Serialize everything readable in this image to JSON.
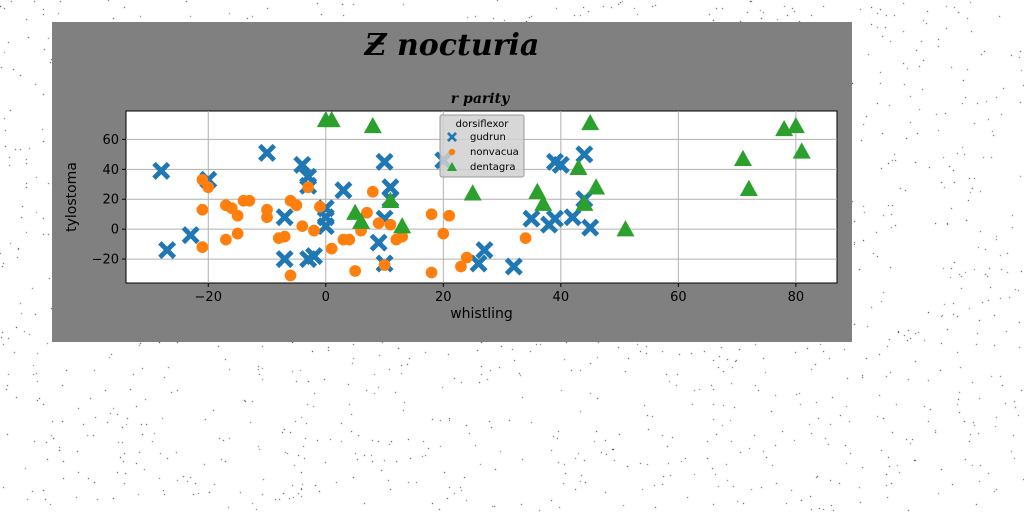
{
  "chart_data": {
    "type": "scatter",
    "title": "Ƶ nocturia",
    "subtitle": "r parity",
    "xlabel": "whistling",
    "ylabel": "tylostoma",
    "xlim": [
      -34,
      87
    ],
    "ylim": [
      -36,
      79
    ],
    "xticks": [
      -20,
      0,
      20,
      40,
      60,
      80
    ],
    "yticks": [
      -20,
      0,
      20,
      40,
      60
    ],
    "xtick_labels": [
      "−20",
      "0",
      "20",
      "40",
      "60",
      "80"
    ],
    "ytick_labels": [
      "−20",
      "0",
      "20",
      "40",
      "60"
    ],
    "grid": true,
    "legend": {
      "title": "dorsiflexor",
      "position": "top-center"
    },
    "series": [
      {
        "name": "gudrun",
        "color": "#1f77b4",
        "marker": "x",
        "points": [
          [
            -28,
            39
          ],
          [
            -27,
            -14
          ],
          [
            -23,
            -4
          ],
          [
            -20,
            33
          ],
          [
            -10,
            51
          ],
          [
            -7,
            -20
          ],
          [
            -7,
            8
          ],
          [
            -4,
            43
          ],
          [
            -3,
            35
          ],
          [
            -3,
            29
          ],
          [
            -3,
            -20
          ],
          [
            -2,
            -18
          ],
          [
            0,
            14
          ],
          [
            0,
            8
          ],
          [
            0,
            2
          ],
          [
            3,
            26
          ],
          [
            9,
            -9
          ],
          [
            10,
            45
          ],
          [
            10,
            -23
          ],
          [
            10,
            7
          ],
          [
            11,
            28
          ],
          [
            11,
            20
          ],
          [
            20,
            46
          ],
          [
            26,
            -23
          ],
          [
            27,
            -14
          ],
          [
            32,
            -25
          ],
          [
            35,
            7
          ],
          [
            38,
            3
          ],
          [
            39,
            7
          ],
          [
            39,
            45
          ],
          [
            40,
            43
          ],
          [
            42,
            8
          ],
          [
            44,
            50
          ],
          [
            44,
            20
          ],
          [
            45,
            1
          ]
        ]
      },
      {
        "name": "nonvacua",
        "color": "#ff7f0e",
        "marker": "o",
        "points": [
          [
            -21,
            33
          ],
          [
            -21,
            13
          ],
          [
            -21,
            -12
          ],
          [
            -20,
            28
          ],
          [
            -17,
            16
          ],
          [
            -17,
            -7
          ],
          [
            -16,
            14
          ],
          [
            -15,
            9
          ],
          [
            -15,
            -3
          ],
          [
            -14,
            19
          ],
          [
            -13,
            19
          ],
          [
            -10,
            13
          ],
          [
            -10,
            8
          ],
          [
            -8,
            -6
          ],
          [
            -7,
            -5
          ],
          [
            -6,
            -31
          ],
          [
            -6,
            19
          ],
          [
            -5,
            16
          ],
          [
            -4,
            2
          ],
          [
            -3,
            28
          ],
          [
            -2,
            -1
          ],
          [
            -1,
            15
          ],
          [
            1,
            -13
          ],
          [
            3,
            -7
          ],
          [
            4,
            -7
          ],
          [
            5,
            -28
          ],
          [
            6,
            -1
          ],
          [
            7,
            11
          ],
          [
            8,
            25
          ],
          [
            9,
            4
          ],
          [
            10,
            -24
          ],
          [
            11,
            3
          ],
          [
            12,
            -7
          ],
          [
            13,
            -5
          ],
          [
            18,
            -29
          ],
          [
            18,
            10
          ],
          [
            20,
            -3
          ],
          [
            21,
            9
          ],
          [
            23,
            -25
          ],
          [
            24,
            -19
          ],
          [
            34,
            -6
          ]
        ]
      },
      {
        "name": "dentagra",
        "color": "#2ca02c",
        "marker": "^",
        "points": [
          [
            0,
            73
          ],
          [
            1,
            73
          ],
          [
            5,
            11
          ],
          [
            6,
            5
          ],
          [
            8,
            69
          ],
          [
            11,
            19
          ],
          [
            13,
            2
          ],
          [
            25,
            24
          ],
          [
            36,
            25
          ],
          [
            37,
            17
          ],
          [
            43,
            41
          ],
          [
            44,
            17
          ],
          [
            45,
            71
          ],
          [
            46,
            28
          ],
          [
            51,
            0
          ],
          [
            71,
            47
          ],
          [
            72,
            27
          ],
          [
            78,
            67
          ],
          [
            80,
            69
          ],
          [
            81,
            52
          ]
        ]
      }
    ]
  }
}
